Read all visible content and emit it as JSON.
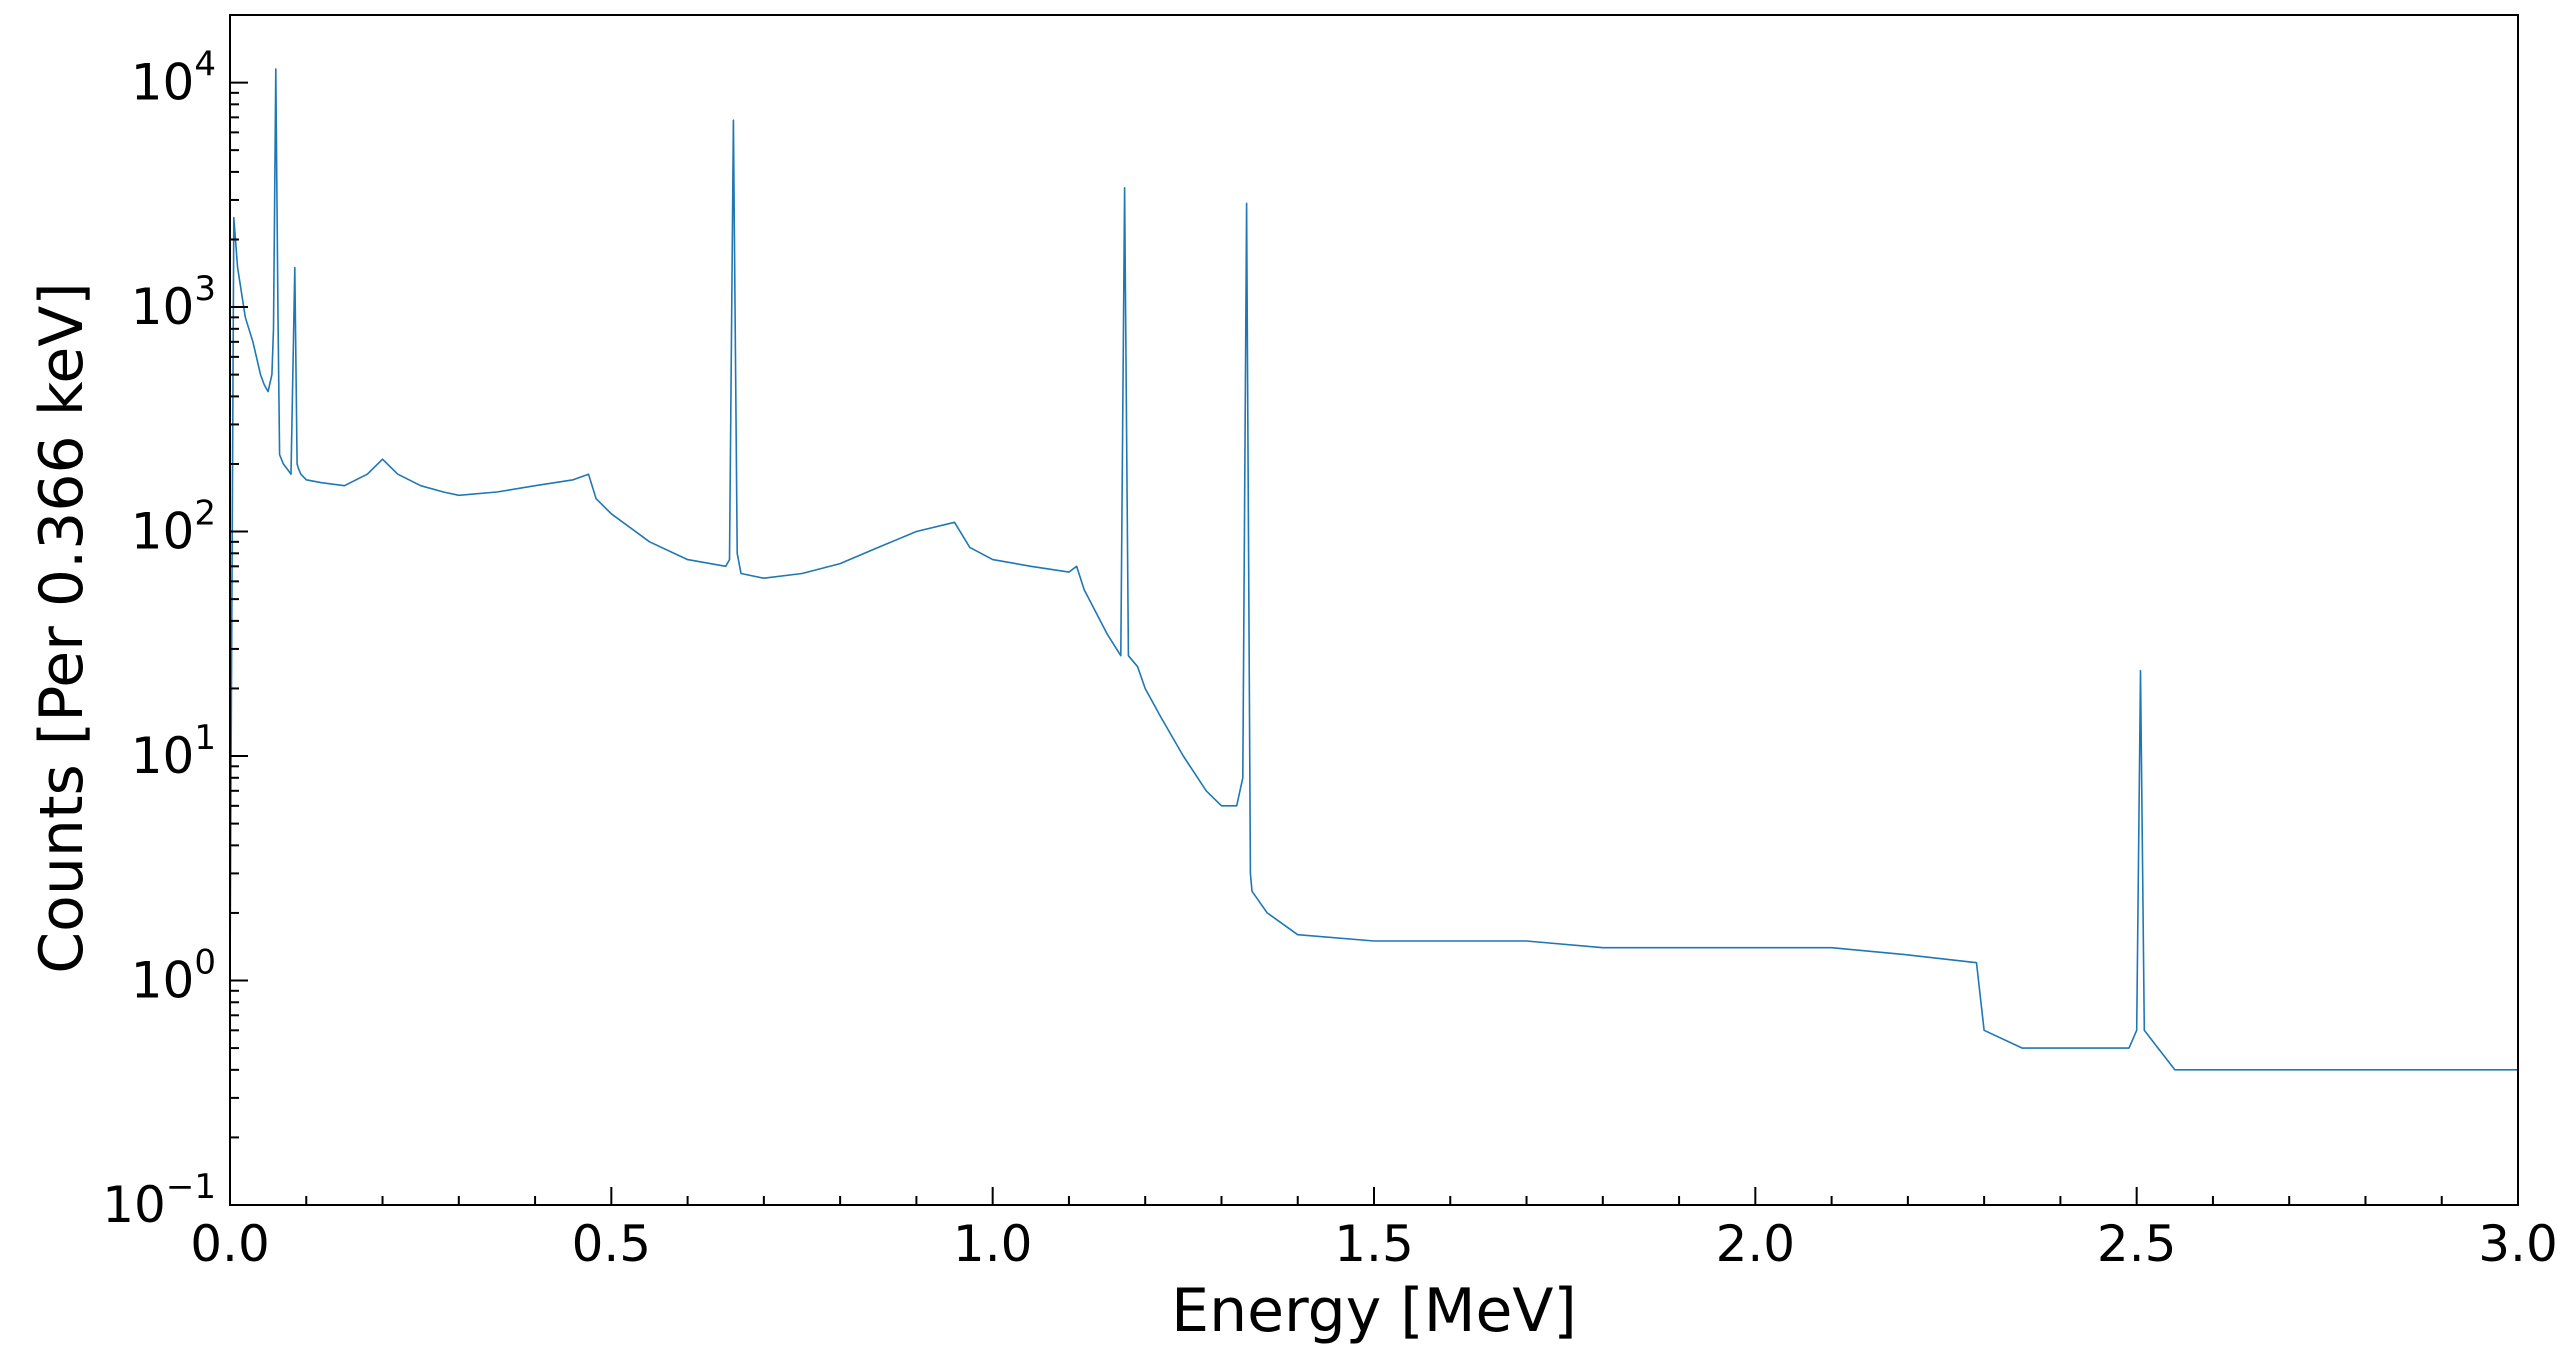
{
  "chart_data": {
    "type": "line",
    "xlabel": "Energy [MeV]",
    "ylabel": "Counts [Per 0.366 keV]",
    "xlim": [
      0.0,
      3.0
    ],
    "ylim": [
      0.1,
      20000
    ],
    "yscale": "log",
    "x_ticks": [
      {
        "value": 0.0,
        "label": "0.0"
      },
      {
        "value": 0.5,
        "label": "0.5"
      },
      {
        "value": 1.0,
        "label": "1.0"
      },
      {
        "value": 1.5,
        "label": "1.5"
      },
      {
        "value": 2.0,
        "label": "2.0"
      },
      {
        "value": 2.5,
        "label": "2.5"
      },
      {
        "value": 3.0,
        "label": "3.0"
      }
    ],
    "y_ticks": [
      {
        "value": 0.1,
        "base": "10",
        "exp": "−1"
      },
      {
        "value": 1,
        "base": "10",
        "exp": "0"
      },
      {
        "value": 10,
        "base": "10",
        "exp": "1"
      },
      {
        "value": 100,
        "base": "10",
        "exp": "2"
      },
      {
        "value": 1000,
        "base": "10",
        "exp": "3"
      },
      {
        "value": 10000,
        "base": "10",
        "exp": "4"
      }
    ],
    "grid": false,
    "line_color": "#1f77b4",
    "series": [
      {
        "x": [
          0.0,
          0.005,
          0.01,
          0.02,
          0.03,
          0.04,
          0.045,
          0.05,
          0.055,
          0.057,
          0.06,
          0.063,
          0.065,
          0.07,
          0.075,
          0.08,
          0.085,
          0.088,
          0.09,
          0.093,
          0.1,
          0.12,
          0.15,
          0.18,
          0.2,
          0.22,
          0.25,
          0.28,
          0.3,
          0.35,
          0.4,
          0.45,
          0.47,
          0.48,
          0.5,
          0.55,
          0.6,
          0.65,
          0.655,
          0.66,
          0.665,
          0.67,
          0.7,
          0.75,
          0.8,
          0.85,
          0.9,
          0.95,
          0.97,
          1.0,
          1.05,
          1.1,
          1.11,
          1.12,
          1.15,
          1.168,
          1.173,
          1.178,
          1.19,
          1.2,
          1.22,
          1.25,
          1.28,
          1.3,
          1.32,
          1.328,
          1.333,
          1.338,
          1.34,
          1.36,
          1.4,
          1.5,
          1.6,
          1.7,
          1.8,
          1.9,
          2.0,
          2.1,
          2.2,
          2.29,
          2.3,
          2.35,
          2.4,
          2.45,
          2.49,
          2.5,
          2.505,
          2.51,
          2.55,
          2.6,
          2.7,
          2.8,
          2.9,
          3.0
        ],
        "y": [
          1,
          2500,
          1500,
          900,
          700,
          500,
          450,
          420,
          500,
          800,
          11500,
          900,
          220,
          200,
          190,
          180,
          1500,
          200,
          190,
          180,
          170,
          165,
          160,
          180,
          210,
          180,
          160,
          150,
          145,
          150,
          160,
          170,
          180,
          140,
          120,
          90,
          75,
          70,
          75,
          6800,
          80,
          65,
          62,
          65,
          72,
          85,
          100,
          110,
          85,
          75,
          70,
          66,
          70,
          55,
          35,
          28,
          3400,
          28,
          25,
          20,
          15,
          10,
          7,
          6,
          6,
          8,
          2900,
          3,
          2.5,
          2,
          1.6,
          1.5,
          1.5,
          1.5,
          1.4,
          1.4,
          1.4,
          1.4,
          1.3,
          1.2,
          0.6,
          0.5,
          0.5,
          0.5,
          0.5,
          0.6,
          24,
          0.6,
          0.4,
          0.4,
          0.4,
          0.4,
          0.4,
          0.4
        ]
      }
    ]
  }
}
